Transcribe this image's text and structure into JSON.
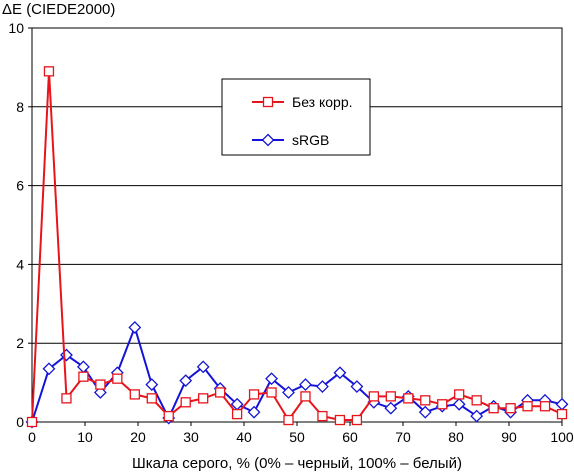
{
  "chart_data": {
    "type": "line",
    "ylabel": "ΔE (CIEDE2000)",
    "xlabel": "Шкала серого, % (0% – черный, 100% – белый)",
    "xlim": [
      0,
      100
    ],
    "ylim": [
      0,
      10
    ],
    "x_ticks": [
      0,
      10,
      20,
      30,
      40,
      50,
      60,
      70,
      80,
      90,
      100
    ],
    "y_ticks": [
      0,
      2,
      4,
      6,
      8,
      10
    ],
    "grid": "horizontal",
    "legend_position": "upper-center",
    "x": [
      0,
      3.2,
      6.5,
      9.7,
      12.9,
      16.1,
      19.4,
      22.6,
      25.8,
      29.0,
      32.3,
      35.5,
      38.7,
      41.9,
      45.2,
      48.4,
      51.6,
      54.8,
      58.1,
      61.3,
      64.5,
      67.7,
      71.0,
      74.2,
      77.4,
      80.6,
      83.9,
      87.1,
      90.3,
      93.5,
      96.8,
      100
    ],
    "series": [
      {
        "name": "Без корр.",
        "color": "#e8141c",
        "marker": "square",
        "values": [
          0,
          8.9,
          0.6,
          1.15,
          0.95,
          1.1,
          0.7,
          0.6,
          0.15,
          0.5,
          0.6,
          0.75,
          0.2,
          0.7,
          0.75,
          0.05,
          0.65,
          0.15,
          0.05,
          0.05,
          0.65,
          0.65,
          0.6,
          0.55,
          0.45,
          0.7,
          0.55,
          0.35,
          0.35,
          0.4,
          0.4,
          0.2
        ]
      },
      {
        "name": "sRGB",
        "color": "#1414d8",
        "marker": "diamond",
        "values": [
          0,
          1.35,
          1.7,
          1.4,
          0.75,
          1.25,
          2.4,
          0.95,
          0.1,
          1.05,
          1.4,
          0.85,
          0.45,
          0.25,
          1.1,
          0.75,
          0.95,
          0.9,
          1.25,
          0.9,
          0.5,
          0.35,
          0.65,
          0.25,
          0.4,
          0.45,
          0.15,
          0.4,
          0.25,
          0.55,
          0.55,
          0.45
        ]
      }
    ]
  }
}
